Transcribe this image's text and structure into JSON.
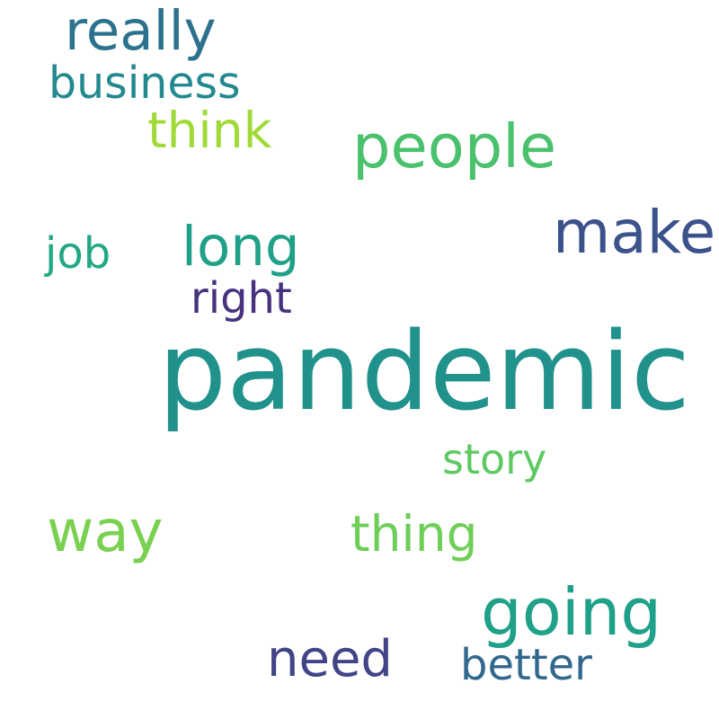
{
  "word_cloud": {
    "words": [
      {
        "text": "pandemic",
        "color": "#21918c"
      },
      {
        "text": "really",
        "color": "#2c728e"
      },
      {
        "text": "business",
        "color": "#23898e"
      },
      {
        "text": "think",
        "color": "#a0da39"
      },
      {
        "text": "people",
        "color": "#4ac16d"
      },
      {
        "text": "make",
        "color": "#3b528b"
      },
      {
        "text": "long",
        "color": "#1fa187"
      },
      {
        "text": "job",
        "color": "#22a884"
      },
      {
        "text": "right",
        "color": "#46327e"
      },
      {
        "text": "story",
        "color": "#5ec962"
      },
      {
        "text": "way",
        "color": "#7ad151"
      },
      {
        "text": "thing",
        "color": "#6ece58"
      },
      {
        "text": "going",
        "color": "#1fa088"
      },
      {
        "text": "need",
        "color": "#414487"
      },
      {
        "text": "better",
        "color": "#31688e"
      }
    ]
  }
}
